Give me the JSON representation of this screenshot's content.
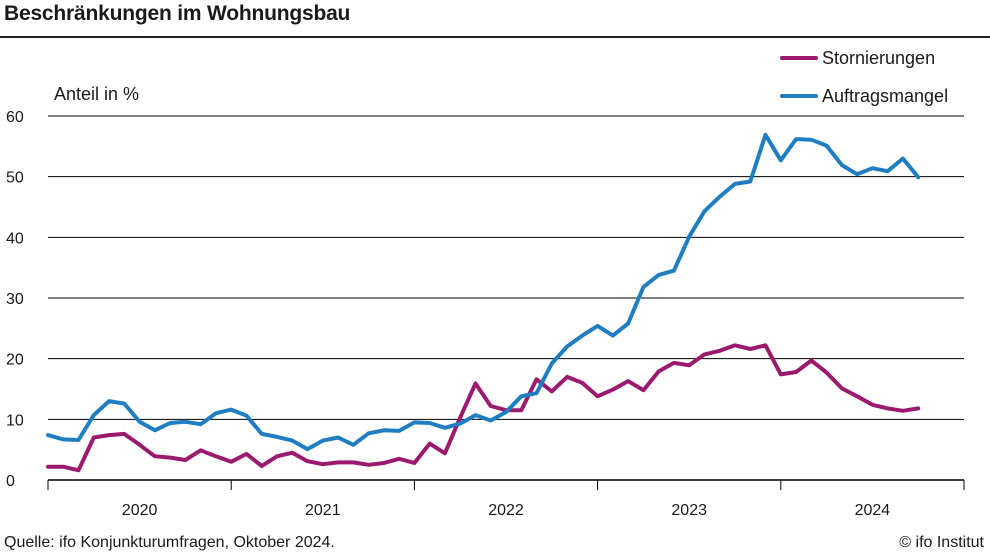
{
  "title": "Beschränkungen im Wohnungsbau",
  "source": "Quelle: ifo Konjunkturumfragen, Oktober 2024.",
  "copyright": "© ifo Institut",
  "chart_data": {
    "type": "line",
    "ylabel": "Anteil in %",
    "ylim": [
      0,
      60
    ],
    "yticks": [
      0,
      10,
      20,
      30,
      40,
      50,
      60
    ],
    "xlim": [
      2019.5,
      2024.5
    ],
    "year_labels": [
      "2020",
      "2021",
      "2022",
      "2023",
      "2024"
    ],
    "grid": true,
    "legend_position": "top-right",
    "series": [
      {
        "name": "Stornierungen",
        "color": "#9b1a6e",
        "values": [
          2.2,
          2.2,
          1.6,
          7.0,
          7.4,
          7.6,
          5.8,
          3.9,
          3.7,
          3.3,
          4.9,
          3.9,
          3.0,
          4.3,
          2.3,
          3.9,
          4.5,
          3.1,
          2.6,
          2.9,
          2.9,
          2.5,
          2.8,
          3.5,
          2.8,
          6.0,
          4.4,
          10.3,
          15.9,
          12.2,
          11.5,
          11.5,
          16.6,
          14.6,
          17.0,
          16.0,
          13.8,
          14.9,
          16.3,
          14.8,
          17.9,
          19.3,
          18.9,
          20.7,
          21.3,
          22.2,
          21.6,
          22.2,
          17.4,
          17.8,
          19.7,
          17.7,
          15.1,
          13.8,
          12.4,
          11.8,
          11.4,
          11.8
        ]
      },
      {
        "name": "Auftragsmangel",
        "color": "#1f7ec1",
        "values": [
          7.4,
          6.7,
          6.6,
          10.7,
          13.0,
          12.6,
          9.6,
          8.2,
          9.4,
          9.6,
          9.2,
          11.0,
          11.6,
          10.6,
          7.6,
          7.1,
          6.5,
          5.1,
          6.5,
          7.0,
          5.8,
          7.7,
          8.2,
          8.1,
          9.5,
          9.4,
          8.6,
          9.3,
          10.7,
          9.8,
          11.2,
          13.8,
          14.3,
          19.2,
          22.0,
          23.8,
          25.4,
          23.8,
          25.8,
          31.8,
          33.8,
          34.5,
          40.1,
          44.3,
          46.7,
          48.8,
          49.2,
          56.9,
          52.7,
          56.2,
          56.1,
          55.1,
          51.9,
          50.4,
          51.4,
          50.9,
          53.0,
          49.9
        ]
      }
    ]
  }
}
